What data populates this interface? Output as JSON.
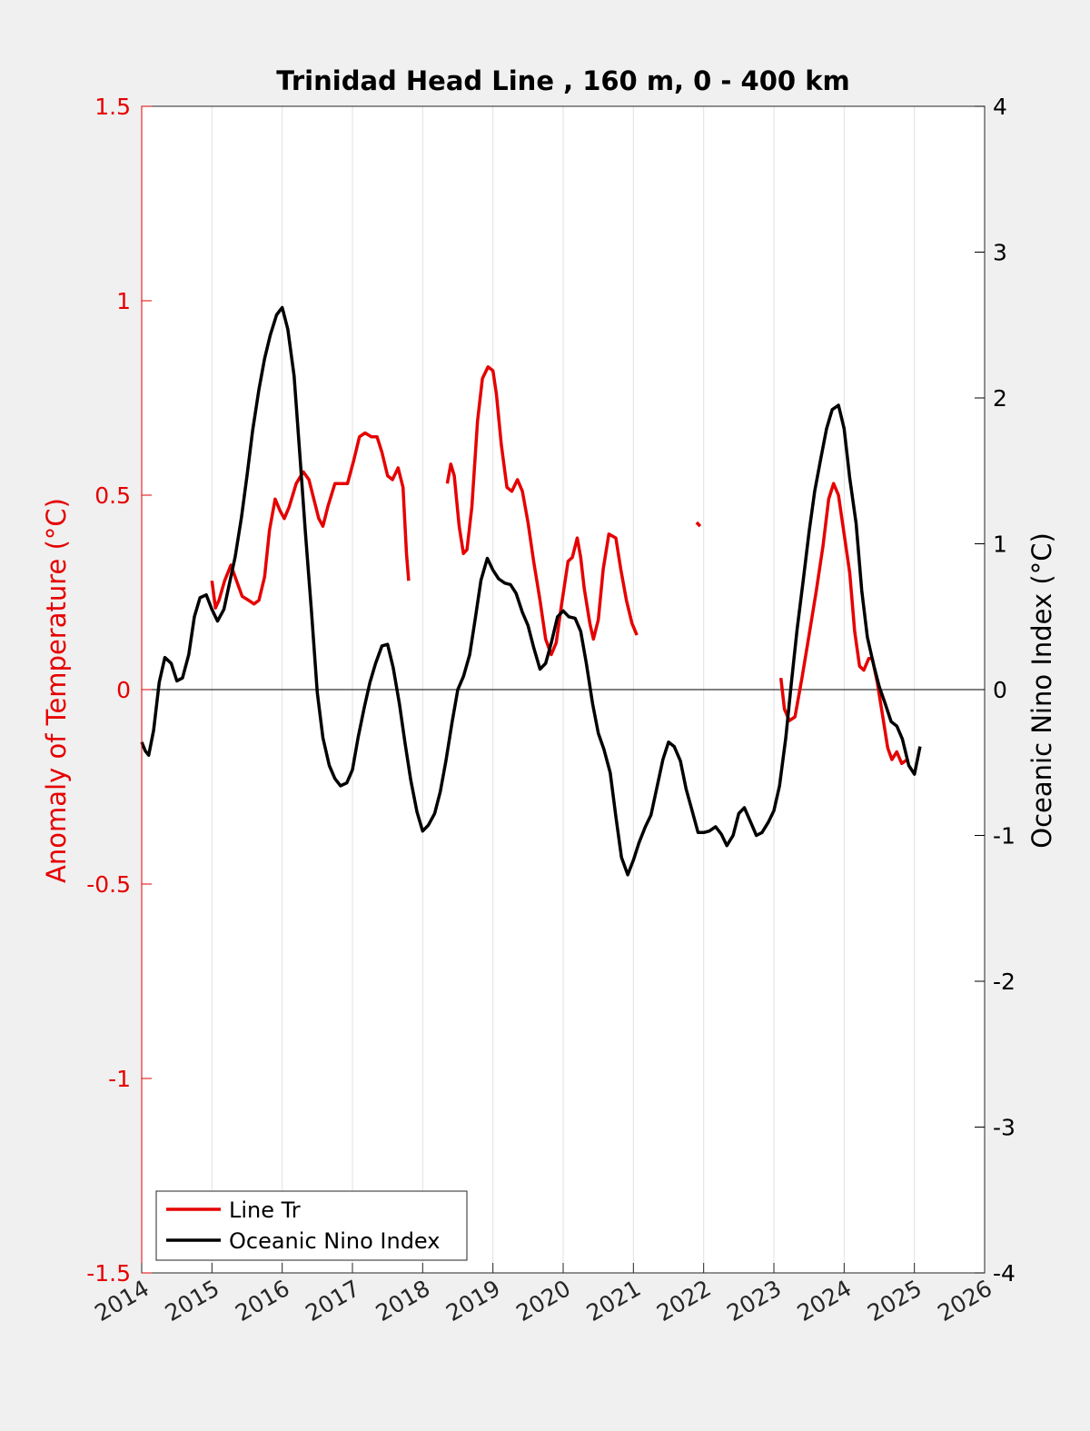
{
  "chart_data": {
    "type": "line",
    "title": "Trinidad Head Line , 160 m, 0 - 400 km",
    "xlim": [
      2014,
      2026
    ],
    "x_ticks": [
      "2014",
      "2015",
      "2016",
      "2017",
      "2018",
      "2019",
      "2020",
      "2021",
      "2022",
      "2023",
      "2024",
      "2025",
      "2026"
    ],
    "left_axis": {
      "label": "Anomaly of Temperature (°C)",
      "ylim": [
        -1.5,
        1.5
      ],
      "ticks": [
        "-1.5",
        "-1",
        "-0.5",
        "0",
        "0.5",
        "1",
        "1.5"
      ],
      "color": "#e60000"
    },
    "right_axis": {
      "label": "Oceanic Nino Index (°C)",
      "ylim": [
        -4,
        4
      ],
      "ticks": [
        "-4",
        "-3",
        "-2",
        "-1",
        "0",
        "1",
        "2",
        "3",
        "4"
      ],
      "color": "#000000"
    },
    "grid": "vertical",
    "legend": {
      "position": "bottom-left",
      "entries": [
        "Line Tr",
        "Oceanic Nino Index"
      ]
    },
    "series": [
      {
        "name": "Line Tr",
        "axis": "left",
        "color": "#e60000",
        "segments": [
          [
            [
              2015.0,
              0.28
            ],
            [
              2015.05,
              0.21
            ],
            [
              2015.1,
              0.23
            ],
            [
              2015.18,
              0.28
            ],
            [
              2015.27,
              0.32
            ],
            [
              2015.35,
              0.28
            ],
            [
              2015.43,
              0.24
            ],
            [
              2015.52,
              0.23
            ],
            [
              2015.6,
              0.22
            ],
            [
              2015.67,
              0.23
            ],
            [
              2015.75,
              0.29
            ],
            [
              2015.82,
              0.41
            ],
            [
              2015.9,
              0.49
            ],
            [
              2015.97,
              0.46
            ],
            [
              2016.03,
              0.44
            ],
            [
              2016.1,
              0.47
            ],
            [
              2016.2,
              0.53
            ],
            [
              2016.3,
              0.56
            ],
            [
              2016.38,
              0.54
            ],
            [
              2016.45,
              0.49
            ],
            [
              2016.52,
              0.44
            ],
            [
              2016.58,
              0.42
            ],
            [
              2016.65,
              0.47
            ],
            [
              2016.75,
              0.53
            ],
            [
              2016.85,
              0.53
            ],
            [
              2016.93,
              0.53
            ],
            [
              2017.02,
              0.59
            ],
            [
              2017.1,
              0.65
            ],
            [
              2017.18,
              0.66
            ],
            [
              2017.27,
              0.65
            ],
            [
              2017.35,
              0.65
            ],
            [
              2017.42,
              0.61
            ],
            [
              2017.5,
              0.55
            ],
            [
              2017.57,
              0.54
            ],
            [
              2017.65,
              0.57
            ],
            [
              2017.72,
              0.52
            ],
            [
              2017.77,
              0.35
            ],
            [
              2017.8,
              0.28
            ]
          ],
          [
            [
              2018.35,
              0.53
            ],
            [
              2018.4,
              0.58
            ],
            [
              2018.45,
              0.55
            ],
            [
              2018.52,
              0.42
            ],
            [
              2018.58,
              0.35
            ],
            [
              2018.63,
              0.36
            ],
            [
              2018.7,
              0.47
            ],
            [
              2018.78,
              0.69
            ],
            [
              2018.85,
              0.8
            ],
            [
              2018.93,
              0.83
            ],
            [
              2019.0,
              0.82
            ],
            [
              2019.05,
              0.76
            ],
            [
              2019.12,
              0.63
            ],
            [
              2019.2,
              0.52
            ],
            [
              2019.27,
              0.51
            ],
            [
              2019.35,
              0.54
            ],
            [
              2019.42,
              0.51
            ],
            [
              2019.5,
              0.43
            ],
            [
              2019.58,
              0.33
            ],
            [
              2019.67,
              0.23
            ],
            [
              2019.75,
              0.13
            ],
            [
              2019.83,
              0.09
            ],
            [
              2019.9,
              0.12
            ],
            [
              2019.97,
              0.21
            ],
            [
              2020.07,
              0.33
            ],
            [
              2020.13,
              0.34
            ],
            [
              2020.2,
              0.39
            ],
            [
              2020.25,
              0.34
            ],
            [
              2020.3,
              0.26
            ],
            [
              2020.38,
              0.17
            ],
            [
              2020.43,
              0.13
            ],
            [
              2020.5,
              0.18
            ],
            [
              2020.57,
              0.31
            ],
            [
              2020.65,
              0.4
            ],
            [
              2020.75,
              0.39
            ],
            [
              2020.82,
              0.31
            ],
            [
              2020.9,
              0.23
            ],
            [
              2020.98,
              0.17
            ],
            [
              2021.05,
              0.14
            ]
          ],
          [
            [
              2021.9,
              0.43
            ],
            [
              2021.95,
              0.42
            ]
          ],
          [
            [
              2023.1,
              0.03
            ],
            [
              2023.15,
              -0.05
            ],
            [
              2023.22,
              -0.08
            ],
            [
              2023.3,
              -0.07
            ],
            [
              2023.4,
              0.03
            ],
            [
              2023.5,
              0.14
            ],
            [
              2023.6,
              0.25
            ],
            [
              2023.7,
              0.37
            ],
            [
              2023.78,
              0.49
            ],
            [
              2023.85,
              0.53
            ],
            [
              2023.92,
              0.5
            ],
            [
              2024.0,
              0.4
            ],
            [
              2024.08,
              0.3
            ],
            [
              2024.15,
              0.15
            ],
            [
              2024.22,
              0.06
            ],
            [
              2024.28,
              0.05
            ],
            [
              2024.35,
              0.08
            ],
            [
              2024.4,
              0.08
            ],
            [
              2024.47,
              0.02
            ],
            [
              2024.55,
              -0.07
            ],
            [
              2024.62,
              -0.15
            ],
            [
              2024.68,
              -0.18
            ],
            [
              2024.75,
              -0.16
            ],
            [
              2024.82,
              -0.19
            ],
            [
              2024.9,
              -0.18
            ]
          ]
        ]
      },
      {
        "name": "Oceanic Nino Index",
        "axis": "right",
        "color": "#000000",
        "segments": [
          [
            [
              2014.0,
              -0.36
            ],
            [
              2014.05,
              -0.42
            ],
            [
              2014.1,
              -0.45
            ],
            [
              2014.17,
              -0.28
            ],
            [
              2014.25,
              0.05
            ],
            [
              2014.33,
              0.22
            ],
            [
              2014.42,
              0.18
            ],
            [
              2014.5,
              0.06
            ],
            [
              2014.58,
              0.08
            ],
            [
              2014.67,
              0.24
            ],
            [
              2014.75,
              0.5
            ],
            [
              2014.83,
              0.63
            ],
            [
              2014.92,
              0.65
            ],
            [
              2015.0,
              0.55
            ],
            [
              2015.08,
              0.47
            ],
            [
              2015.17,
              0.55
            ],
            [
              2015.25,
              0.73
            ],
            [
              2015.33,
              0.91
            ],
            [
              2015.42,
              1.18
            ],
            [
              2015.5,
              1.47
            ],
            [
              2015.58,
              1.78
            ],
            [
              2015.67,
              2.06
            ],
            [
              2015.75,
              2.27
            ],
            [
              2015.83,
              2.43
            ],
            [
              2015.92,
              2.57
            ],
            [
              2016.0,
              2.62
            ],
            [
              2016.08,
              2.47
            ],
            [
              2016.17,
              2.15
            ],
            [
              2016.25,
              1.62
            ],
            [
              2016.33,
              1.08
            ],
            [
              2016.42,
              0.52
            ],
            [
              2016.5,
              -0.02
            ],
            [
              2016.58,
              -0.33
            ],
            [
              2016.67,
              -0.52
            ],
            [
              2016.75,
              -0.61
            ],
            [
              2016.83,
              -0.66
            ],
            [
              2016.92,
              -0.64
            ],
            [
              2017.0,
              -0.55
            ],
            [
              2017.08,
              -0.33
            ],
            [
              2017.17,
              -0.12
            ],
            [
              2017.25,
              0.05
            ],
            [
              2017.33,
              0.18
            ],
            [
              2017.42,
              0.3
            ],
            [
              2017.5,
              0.31
            ],
            [
              2017.58,
              0.15
            ],
            [
              2017.67,
              -0.1
            ],
            [
              2017.75,
              -0.37
            ],
            [
              2017.83,
              -0.62
            ],
            [
              2017.92,
              -0.84
            ],
            [
              2018.0,
              -0.97
            ],
            [
              2018.08,
              -0.93
            ],
            [
              2018.17,
              -0.85
            ],
            [
              2018.25,
              -0.7
            ],
            [
              2018.33,
              -0.49
            ],
            [
              2018.42,
              -0.22
            ],
            [
              2018.5,
              0.0
            ],
            [
              2018.58,
              0.09
            ],
            [
              2018.67,
              0.24
            ],
            [
              2018.75,
              0.49
            ],
            [
              2018.83,
              0.75
            ],
            [
              2018.92,
              0.9
            ],
            [
              2019.0,
              0.82
            ],
            [
              2019.08,
              0.76
            ],
            [
              2019.17,
              0.73
            ],
            [
              2019.25,
              0.72
            ],
            [
              2019.33,
              0.66
            ],
            [
              2019.42,
              0.53
            ],
            [
              2019.5,
              0.44
            ],
            [
              2019.58,
              0.29
            ],
            [
              2019.67,
              0.14
            ],
            [
              2019.75,
              0.18
            ],
            [
              2019.83,
              0.32
            ],
            [
              2019.92,
              0.5
            ],
            [
              2020.0,
              0.54
            ],
            [
              2020.08,
              0.5
            ],
            [
              2020.17,
              0.49
            ],
            [
              2020.25,
              0.4
            ],
            [
              2020.33,
              0.18
            ],
            [
              2020.42,
              -0.1
            ],
            [
              2020.5,
              -0.3
            ],
            [
              2020.58,
              -0.41
            ],
            [
              2020.67,
              -0.57
            ],
            [
              2020.75,
              -0.87
            ],
            [
              2020.83,
              -1.15
            ],
            [
              2020.92,
              -1.27
            ],
            [
              2021.0,
              -1.17
            ],
            [
              2021.08,
              -1.05
            ],
            [
              2021.17,
              -0.94
            ],
            [
              2021.25,
              -0.86
            ],
            [
              2021.33,
              -0.68
            ],
            [
              2021.42,
              -0.48
            ],
            [
              2021.5,
              -0.36
            ],
            [
              2021.58,
              -0.39
            ],
            [
              2021.67,
              -0.49
            ],
            [
              2021.75,
              -0.68
            ],
            [
              2021.83,
              -0.82
            ],
            [
              2021.92,
              -0.98
            ],
            [
              2022.0,
              -0.98
            ],
            [
              2022.08,
              -0.97
            ],
            [
              2022.17,
              -0.94
            ],
            [
              2022.25,
              -0.99
            ],
            [
              2022.33,
              -1.07
            ],
            [
              2022.42,
              -1.0
            ],
            [
              2022.5,
              -0.85
            ],
            [
              2022.58,
              -0.81
            ],
            [
              2022.67,
              -0.91
            ],
            [
              2022.75,
              -1.0
            ],
            [
              2022.83,
              -0.98
            ],
            [
              2022.92,
              -0.91
            ],
            [
              2023.0,
              -0.83
            ],
            [
              2023.08,
              -0.66
            ],
            [
              2023.17,
              -0.33
            ],
            [
              2023.25,
              0.05
            ],
            [
              2023.33,
              0.41
            ],
            [
              2023.42,
              0.76
            ],
            [
              2023.5,
              1.08
            ],
            [
              2023.58,
              1.36
            ],
            [
              2023.67,
              1.59
            ],
            [
              2023.75,
              1.79
            ],
            [
              2023.83,
              1.92
            ],
            [
              2023.92,
              1.95
            ],
            [
              2024.0,
              1.79
            ],
            [
              2024.08,
              1.45
            ],
            [
              2024.17,
              1.14
            ],
            [
              2024.25,
              0.68
            ],
            [
              2024.33,
              0.36
            ],
            [
              2024.42,
              0.17
            ],
            [
              2024.5,
              0.02
            ],
            [
              2024.58,
              -0.09
            ],
            [
              2024.67,
              -0.22
            ],
            [
              2024.75,
              -0.25
            ],
            [
              2024.83,
              -0.34
            ],
            [
              2024.92,
              -0.52
            ],
            [
              2025.0,
              -0.58
            ],
            [
              2025.08,
              -0.39
            ]
          ]
        ]
      }
    ]
  }
}
